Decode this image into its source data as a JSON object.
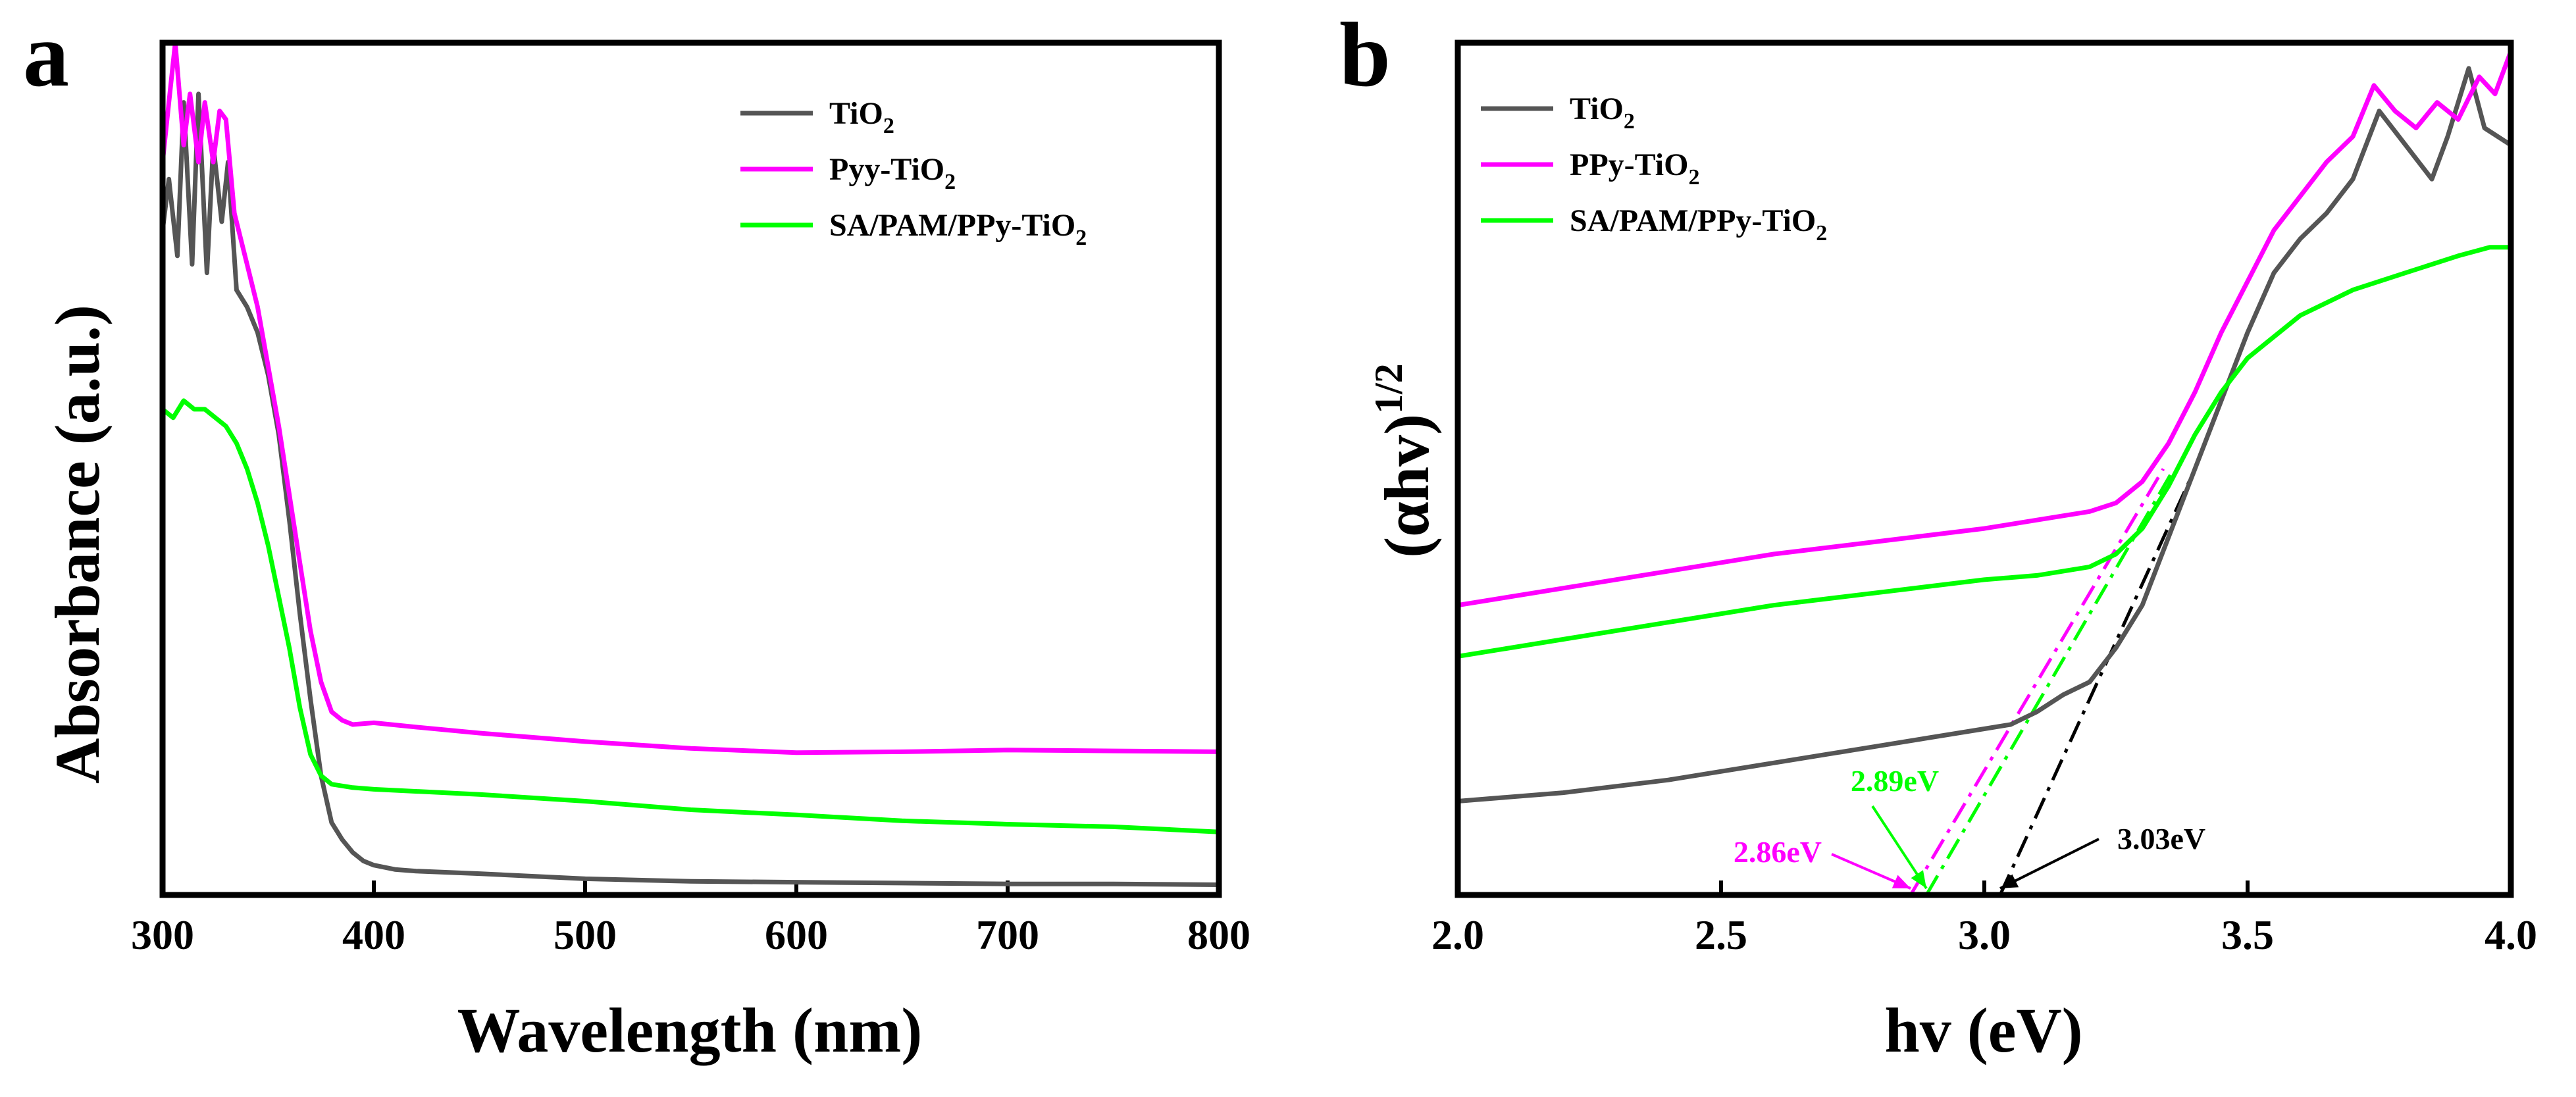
{
  "figure": {
    "panel_a_letter": "a",
    "panel_b_letter": "b"
  },
  "chart_data": [
    {
      "type": "line",
      "panel": "a",
      "xlabel": "Wavelength (nm)",
      "ylabel": "Absorbance (a.u.)",
      "xlim": [
        300,
        800
      ],
      "ylim": [
        0,
        1
      ],
      "xticks": [
        300,
        400,
        500,
        600,
        700,
        800
      ],
      "tick_labels": [
        "300",
        "400",
        "500",
        "600",
        "700",
        "800"
      ],
      "yticks_shown": false,
      "legend": {
        "placement": "top-right"
      },
      "series": [
        {
          "name": "TiO2",
          "label_main": "TiO",
          "label_sub": "2",
          "color": "#555555",
          "x": [
            300,
            303,
            307,
            310,
            314,
            317,
            321,
            324,
            328,
            331,
            335,
            340,
            345,
            350,
            355,
            360,
            365,
            370,
            375,
            380,
            385,
            390,
            395,
            400,
            410,
            420,
            450,
            500,
            550,
            600,
            650,
            700,
            750,
            800
          ],
          "y": [
            0.78,
            0.84,
            0.75,
            0.93,
            0.74,
            0.94,
            0.73,
            0.88,
            0.79,
            0.86,
            0.71,
            0.69,
            0.66,
            0.61,
            0.54,
            0.44,
            0.33,
            0.23,
            0.14,
            0.085,
            0.065,
            0.05,
            0.04,
            0.035,
            0.03,
            0.028,
            0.025,
            0.019,
            0.016,
            0.015,
            0.014,
            0.013,
            0.013,
            0.012
          ]
        },
        {
          "name": "Pyy-TiO2",
          "label_main": "Pyy-TiO",
          "label_sub": "2",
          "color": "#ff00ff",
          "x": [
            300,
            303,
            306,
            310,
            313,
            317,
            320,
            324,
            327,
            330,
            334,
            340,
            345,
            350,
            355,
            360,
            365,
            370,
            375,
            380,
            385,
            390,
            400,
            420,
            450,
            500,
            550,
            600,
            650,
            700,
            750,
            800
          ],
          "y": [
            0.86,
            0.93,
            1.0,
            0.88,
            0.94,
            0.86,
            0.93,
            0.86,
            0.92,
            0.91,
            0.8,
            0.74,
            0.69,
            0.62,
            0.55,
            0.47,
            0.39,
            0.31,
            0.25,
            0.215,
            0.205,
            0.2,
            0.202,
            0.197,
            0.19,
            0.18,
            0.172,
            0.167,
            0.168,
            0.17,
            0.169,
            0.168
          ]
        },
        {
          "name": "SA/PAM/PPy-TiO2",
          "label_main": "SA/PAM/PPy-TiO",
          "label_sub": "2",
          "color": "#00ff00",
          "x": [
            300,
            305,
            310,
            315,
            320,
            325,
            330,
            335,
            340,
            345,
            350,
            355,
            360,
            365,
            370,
            375,
            380,
            390,
            400,
            450,
            500,
            550,
            600,
            650,
            700,
            750,
            800
          ],
          "y": [
            0.57,
            0.56,
            0.58,
            0.57,
            0.57,
            0.56,
            0.55,
            0.53,
            0.5,
            0.46,
            0.41,
            0.35,
            0.29,
            0.22,
            0.165,
            0.14,
            0.13,
            0.126,
            0.124,
            0.118,
            0.11,
            0.1,
            0.094,
            0.087,
            0.083,
            0.08,
            0.074
          ]
        }
      ]
    },
    {
      "type": "line",
      "panel": "b",
      "xlabel": "hv (eV)",
      "ylabel_main": "(αhv)",
      "ylabel_sup": "1/2",
      "xlim": [
        2.0,
        4.0
      ],
      "ylim": [
        0,
        1
      ],
      "xticks": [
        2.0,
        2.5,
        3.0,
        3.5,
        4.0
      ],
      "tick_labels": [
        "2.0",
        "2.5",
        "3.0",
        "3.5",
        "4.0"
      ],
      "yticks_shown": false,
      "legend": {
        "placement": "top-left"
      },
      "series": [
        {
          "name": "TiO2",
          "label_main": "TiO",
          "label_sub": "2",
          "color": "#555555",
          "x": [
            2.0,
            2.2,
            2.4,
            2.6,
            2.8,
            3.0,
            3.05,
            3.1,
            3.15,
            3.2,
            3.25,
            3.3,
            3.35,
            3.4,
            3.45,
            3.5,
            3.55,
            3.6,
            3.65,
            3.7,
            3.75,
            3.8,
            3.85,
            3.88,
            3.92,
            3.95,
            4.0
          ],
          "y": [
            0.11,
            0.12,
            0.135,
            0.155,
            0.175,
            0.195,
            0.2,
            0.215,
            0.235,
            0.25,
            0.29,
            0.34,
            0.42,
            0.5,
            0.58,
            0.66,
            0.73,
            0.77,
            0.8,
            0.84,
            0.92,
            0.88,
            0.84,
            0.89,
            0.97,
            0.9,
            0.88
          ]
        },
        {
          "name": "PPy-TiO2",
          "label_main": "PPy-TiO",
          "label_sub": "2",
          "color": "#ff00ff",
          "x": [
            2.0,
            2.2,
            2.4,
            2.6,
            2.8,
            3.0,
            3.1,
            3.2,
            3.25,
            3.3,
            3.35,
            3.4,
            3.45,
            3.5,
            3.55,
            3.6,
            3.65,
            3.7,
            3.74,
            3.78,
            3.82,
            3.86,
            3.9,
            3.94,
            3.97,
            4.0
          ],
          "y": [
            0.34,
            0.36,
            0.38,
            0.4,
            0.415,
            0.43,
            0.44,
            0.45,
            0.46,
            0.485,
            0.53,
            0.59,
            0.66,
            0.72,
            0.78,
            0.82,
            0.86,
            0.89,
            0.95,
            0.92,
            0.9,
            0.93,
            0.91,
            0.96,
            0.94,
            0.99
          ]
        },
        {
          "name": "SA/PAM/PPy-TiO2",
          "label_main": "SA/PAM/PPy-TiO",
          "label_sub": "2",
          "color": "#00ff00",
          "x": [
            2.0,
            2.2,
            2.4,
            2.6,
            2.8,
            3.0,
            3.1,
            3.2,
            3.25,
            3.3,
            3.35,
            3.4,
            3.45,
            3.5,
            3.6,
            3.7,
            3.8,
            3.9,
            3.96,
            4.0
          ],
          "y": [
            0.28,
            0.3,
            0.32,
            0.34,
            0.355,
            0.37,
            0.375,
            0.385,
            0.4,
            0.43,
            0.48,
            0.54,
            0.59,
            0.63,
            0.68,
            0.71,
            0.73,
            0.75,
            0.76,
            0.76
          ]
        }
      ],
      "tauc_fits": [
        {
          "name": "TiO2 fit",
          "color": "#000000",
          "x": [
            3.03,
            3.4
          ],
          "y": [
            0.0,
            0.5
          ]
        },
        {
          "name": "PPy-TiO2 fit",
          "color": "#ff00ff",
          "x": [
            2.86,
            3.34
          ],
          "y": [
            0.0,
            0.5
          ]
        },
        {
          "name": "SA/PAM/PPy-TiO2 fit",
          "color": "#00ff00",
          "x": [
            2.89,
            3.36
          ],
          "y": [
            0.0,
            0.5
          ]
        }
      ],
      "annotations": [
        {
          "text": "2.89eV",
          "color": "#00ff00",
          "x": 2.89,
          "y": 0.0
        },
        {
          "text": "2.86eV",
          "color": "#ff00ff",
          "x": 2.86,
          "y": 0.0
        },
        {
          "text": "3.03eV",
          "color": "#000000",
          "x": 3.03,
          "y": 0.0
        }
      ]
    }
  ]
}
